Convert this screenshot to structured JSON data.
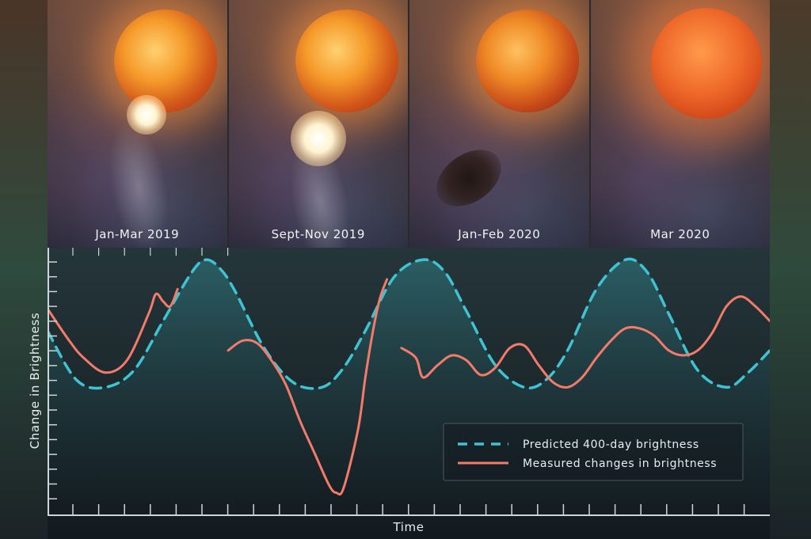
{
  "panels": [
    {
      "caption": "Jan-Mar 2019"
    },
    {
      "caption": "Sept-Nov  2019"
    },
    {
      "caption": "Jan-Feb 2020"
    },
    {
      "caption": "Mar 2020"
    }
  ],
  "chart_data": {
    "type": "line",
    "xlabel": "Time",
    "ylabel": "Change in Brightness",
    "xlim": [
      0,
      100
    ],
    "ylim": [
      0,
      100
    ],
    "grid": false,
    "legend_position": "bottom-right",
    "colors": {
      "predicted": "#3fc3d2",
      "measured": "#f47a6a"
    },
    "series": [
      {
        "name": "Predicted 400-day brightness",
        "style": "dashed",
        "x": [
          0,
          4,
          8,
          12,
          16,
          20,
          22,
          24,
          26,
          30,
          34,
          38,
          41,
          44,
          48,
          52,
          55,
          58,
          62,
          66,
          69,
          72,
          76,
          80,
          83,
          86,
          90,
          94,
          97,
          100
        ],
        "y": [
          70,
          50,
          47,
          54,
          74,
          94,
          99,
          95,
          86,
          63,
          49,
          47,
          55,
          70,
          92,
          99,
          94,
          78,
          56,
          47,
          50,
          62,
          87,
          99,
          94,
          77,
          54,
          47,
          53,
          62
        ]
      },
      {
        "name": "Measured changes in brightness",
        "x": [
          0,
          3,
          5,
          8,
          11,
          14,
          15,
          16,
          17,
          18
        ],
        "y": [
          79,
          66,
          59,
          53,
          58,
          77,
          85,
          82,
          80,
          87
        ],
        "segment": 1
      },
      {
        "name": "Measured changes in brightness",
        "x": [
          25,
          27,
          29,
          31,
          33,
          35,
          37,
          39,
          40,
          41,
          43,
          44,
          45,
          46,
          47
        ],
        "y": [
          62,
          66,
          65,
          58,
          48,
          33,
          20,
          7,
          4,
          6,
          30,
          51,
          69,
          83,
          91
        ],
        "segment": 2
      },
      {
        "name": "Measured changes in brightness",
        "x": [
          49,
          51,
          52,
          54,
          56,
          58,
          60,
          62,
          64,
          66,
          68,
          70,
          72,
          74,
          76,
          78,
          80,
          82,
          84,
          86,
          88,
          90,
          92,
          94,
          96,
          98,
          100
        ],
        "y": [
          63,
          59,
          51,
          56,
          60,
          58,
          52,
          55,
          63,
          64,
          56,
          49,
          47,
          51,
          59,
          66,
          71,
          71,
          68,
          62,
          60,
          62,
          69,
          80,
          84,
          80,
          74
        ],
        "segment": 3
      }
    ]
  }
}
